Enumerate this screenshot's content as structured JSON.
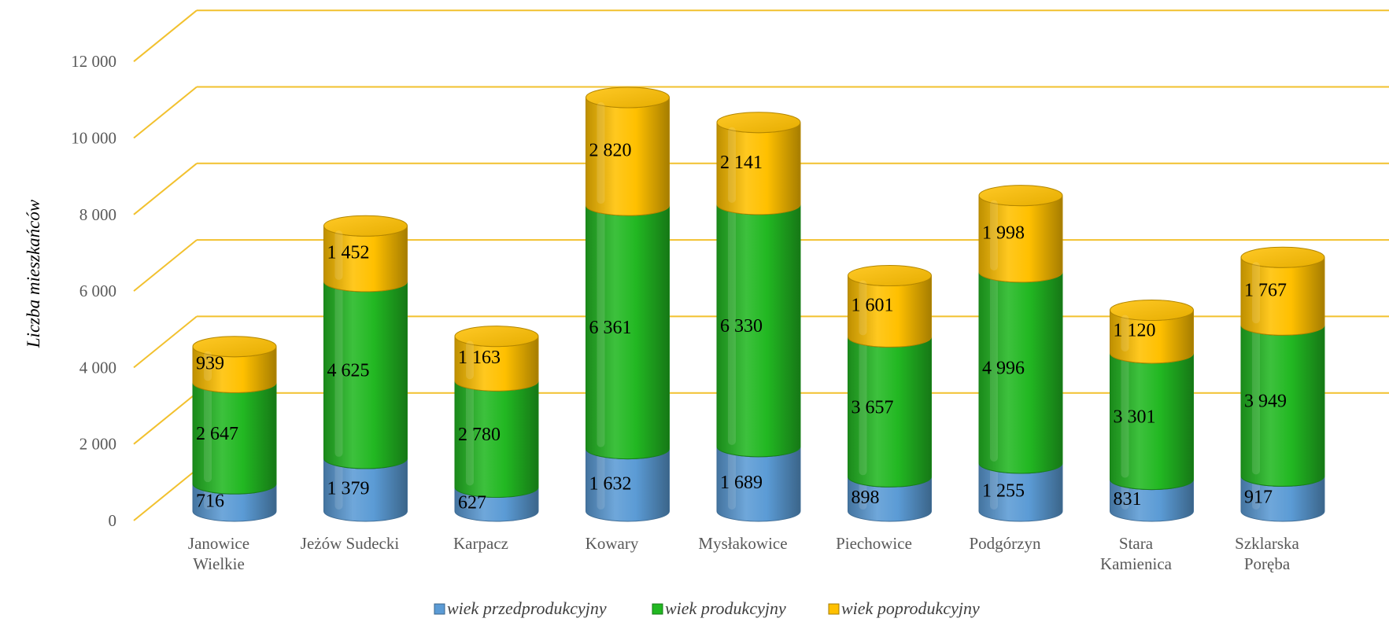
{
  "chart_data": {
    "type": "bar",
    "stacked": true,
    "style": "3d-cylinder",
    "title": "",
    "xlabel": "",
    "ylabel": "Liczba mieszkańców",
    "ylim": [
      0,
      12000
    ],
    "yticks": [
      "0",
      "2 000",
      "4 000",
      "6 000",
      "8 000",
      "10 000",
      "12 000"
    ],
    "grid": true,
    "legend_position": "bottom",
    "categories": [
      [
        "Janowice",
        "Wielkie"
      ],
      [
        "Jeżów Sudecki"
      ],
      [
        "Karpacz"
      ],
      [
        "Kowary"
      ],
      [
        "Mysłakowice"
      ],
      [
        "Piechowice"
      ],
      [
        "Podgórzyn"
      ],
      [
        "Stara",
        "Kamienica"
      ],
      [
        "Szklarska",
        "Poręba"
      ]
    ],
    "series": [
      {
        "name": "wiek przedprodukcyjny",
        "color": "#5B9BD5",
        "values": [
          716,
          1379,
          627,
          1632,
          1689,
          898,
          1255,
          831,
          917
        ],
        "labels": [
          "716",
          "1 379",
          "627",
          "1 632",
          "1 689",
          "898",
          "1 255",
          "831",
          "917"
        ]
      },
      {
        "name": "wiek produkcyjny",
        "color": "#22B822",
        "values": [
          2647,
          4625,
          2780,
          6361,
          6330,
          3657,
          4996,
          3301,
          3949
        ],
        "labels": [
          "2 647",
          "4 625",
          "2 780",
          "6 361",
          "6 330",
          "3 657",
          "4 996",
          "3 301",
          "3 949"
        ]
      },
      {
        "name": "wiek poprodukcyjny",
        "color": "#FFC000",
        "values": [
          939,
          1452,
          1163,
          2820,
          2141,
          1601,
          1998,
          1120,
          1767
        ],
        "labels": [
          "939",
          "1 452",
          "1 163",
          "2 820",
          "2 141",
          "1 601",
          "1 998",
          "1 120",
          "1 767"
        ]
      }
    ],
    "gridline_color": "#F2C12E"
  }
}
